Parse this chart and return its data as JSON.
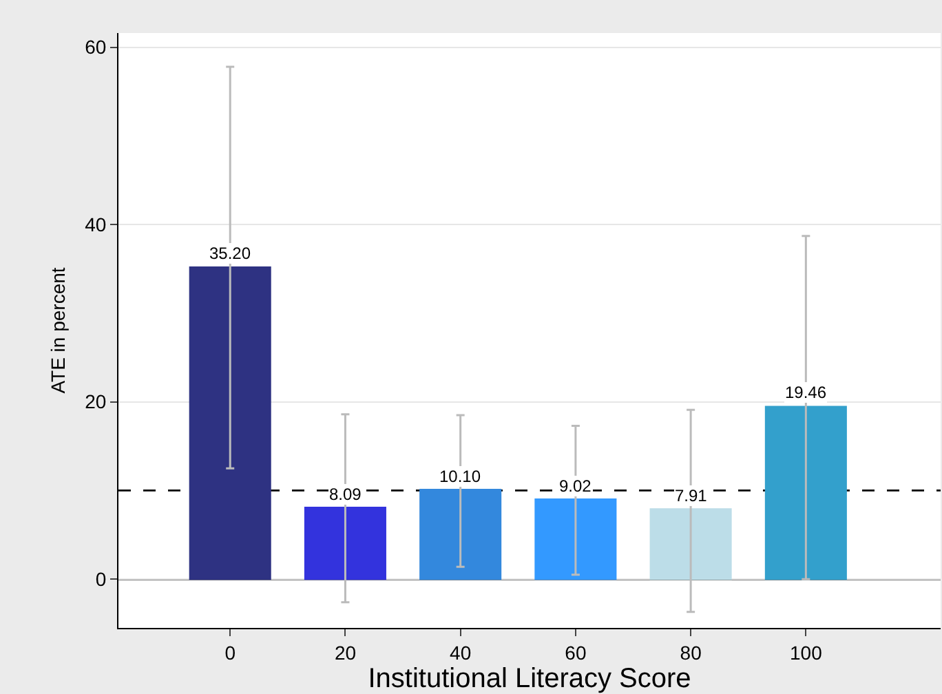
{
  "chart_data": {
    "type": "bar",
    "xlabel": "Institutional Literacy Score",
    "ylabel": "ATE in percent",
    "x": [
      0,
      20,
      40,
      60,
      80,
      100
    ],
    "values": [
      35.2,
      8.09,
      10.1,
      9.02,
      7.91,
      19.46
    ],
    "value_labels": [
      "35.20",
      "8.09",
      "10.10",
      "9.02",
      "7.91",
      "19.46"
    ],
    "colors": [
      "#2e3282",
      "#3333dd",
      "#3388dd",
      "#3399ff",
      "#bcdde8",
      "#33a0cc"
    ],
    "errors": [
      [
        12.5,
        57.8
      ],
      [
        -2.6,
        18.6
      ],
      [
        1.4,
        18.5
      ],
      [
        0.5,
        17.3
      ],
      [
        -3.7,
        19.1
      ],
      [
        0,
        38.7
      ]
    ],
    "xlim": [
      -19.4,
      123.4
    ],
    "xticks": [
      0,
      20,
      40,
      60,
      80,
      100
    ],
    "ylim": [
      -5.5,
      61.6
    ],
    "yticks": [
      0,
      20,
      40,
      60
    ],
    "grid": "y",
    "ref_lines": [
      {
        "axis": "y",
        "value": 0,
        "color": "#000000",
        "line_style": "solid"
      },
      {
        "axis": "y",
        "value": 10,
        "color": "#000000",
        "line_style": "dashed"
      }
    ]
  }
}
